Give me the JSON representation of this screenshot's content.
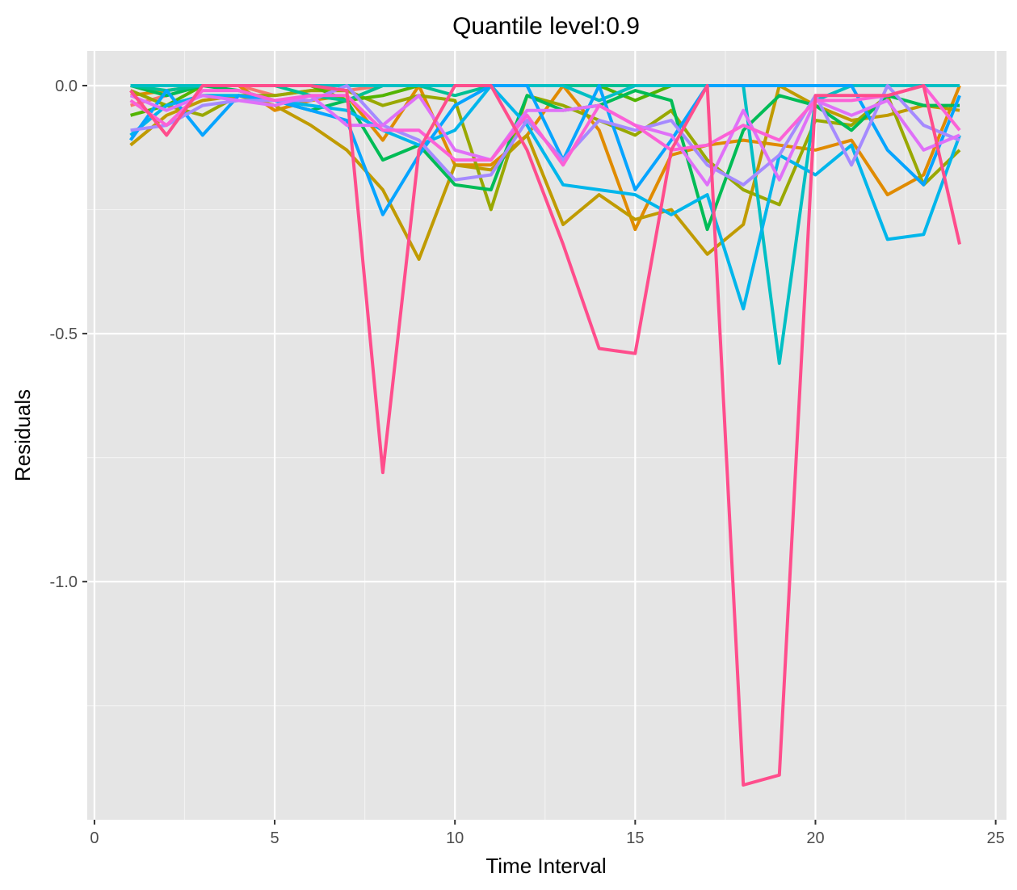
{
  "chart_data": {
    "type": "line",
    "title": "Quantile level:0.9",
    "xlabel": "Time Interval",
    "ylabel": "Residuals",
    "xlim": [
      -0.2,
      25.3
    ],
    "ylim": [
      -1.48,
      0.07
    ],
    "x_ticks": [
      0,
      5,
      10,
      15,
      20,
      25
    ],
    "x_tick_labels": [
      "0",
      "5",
      "10",
      "15",
      "20",
      "25"
    ],
    "y_ticks": [
      0.0,
      -0.5,
      -1.0
    ],
    "y_tick_labels": [
      "0.0",
      "-0.5",
      "-1.0"
    ],
    "background": "#e5e5e5",
    "grid": true,
    "legend": "none",
    "x": [
      1,
      2,
      3,
      4,
      5,
      6,
      7,
      8,
      9,
      10,
      11,
      12,
      13,
      14,
      15,
      16,
      17,
      18,
      19,
      20,
      21,
      22,
      23,
      24
    ],
    "series": [
      {
        "color": "#F8766D",
        "values": [
          -0.04,
          -0.02,
          0,
          0,
          -0.02,
          -0.01,
          -0.01,
          0,
          0,
          0,
          0,
          0,
          0,
          0,
          0,
          0,
          0,
          0,
          0,
          0,
          0,
          0,
          0,
          0
        ]
      },
      {
        "color": "#E08B00",
        "values": [
          -0.02,
          -0.01,
          0,
          0,
          -0.05,
          -0.03,
          -0.02,
          -0.11,
          0,
          -0.16,
          -0.16,
          -0.1,
          0,
          -0.09,
          -0.29,
          -0.14,
          -0.12,
          -0.11,
          -0.12,
          -0.13,
          -0.11,
          -0.22,
          -0.18,
          0
        ]
      },
      {
        "color": "#C09B00",
        "values": [
          -0.12,
          -0.06,
          -0.03,
          -0.02,
          -0.04,
          -0.08,
          -0.13,
          -0.21,
          -0.35,
          -0.16,
          -0.17,
          -0.1,
          -0.28,
          -0.22,
          -0.27,
          -0.25,
          -0.34,
          -0.28,
          0,
          -0.04,
          -0.07,
          -0.06,
          -0.04,
          -0.05
        ]
      },
      {
        "color": "#99A800",
        "values": [
          -0.01,
          -0.04,
          -0.06,
          -0.02,
          -0.02,
          -0.01,
          -0.01,
          -0.04,
          -0.02,
          -0.03,
          -0.25,
          -0.02,
          -0.04,
          -0.07,
          -0.1,
          -0.05,
          -0.15,
          -0.21,
          -0.24,
          -0.07,
          -0.08,
          -0.02,
          -0.2,
          -0.13
        ]
      },
      {
        "color": "#53B400",
        "values": [
          -0.06,
          -0.04,
          0,
          0,
          0,
          0,
          -0.03,
          -0.02,
          0,
          0,
          0,
          0,
          0,
          0,
          -0.03,
          0,
          0,
          0,
          0,
          0,
          0,
          0,
          0,
          0
        ]
      },
      {
        "color": "#00BC56",
        "values": [
          0,
          -0.02,
          0,
          -0.01,
          -0.03,
          -0.05,
          -0.03,
          -0.15,
          -0.12,
          -0.2,
          -0.21,
          -0.02,
          -0.05,
          -0.04,
          -0.01,
          -0.03,
          -0.29,
          -0.09,
          -0.02,
          -0.04,
          -0.09,
          -0.02,
          -0.04,
          -0.04
        ]
      },
      {
        "color": "#00C094",
        "values": [
          0,
          -0.01,
          0,
          0,
          0,
          -0.02,
          -0.03,
          0,
          0,
          -0.02,
          0,
          0,
          0,
          0,
          0,
          0,
          0,
          0,
          0,
          0,
          0,
          0,
          0,
          0
        ]
      },
      {
        "color": "#00BFC4",
        "values": [
          0,
          0,
          0,
          0,
          0,
          0,
          0,
          0,
          0,
          0,
          0,
          0,
          0,
          -0.03,
          0,
          0,
          0,
          0,
          -0.56,
          -0.03,
          0,
          0,
          0,
          0
        ]
      },
      {
        "color": "#00B6EB",
        "values": [
          -0.1,
          -0.04,
          -0.02,
          -0.02,
          -0.03,
          -0.04,
          -0.05,
          -0.09,
          -0.12,
          -0.09,
          0,
          -0.08,
          -0.2,
          -0.21,
          -0.22,
          -0.26,
          -0.22,
          -0.45,
          -0.14,
          -0.18,
          -0.12,
          -0.31,
          -0.3,
          -0.1
        ]
      },
      {
        "color": "#06A4FF",
        "values": [
          -0.11,
          -0.01,
          -0.1,
          -0.02,
          -0.03,
          -0.05,
          -0.07,
          -0.26,
          -0.14,
          -0.04,
          0,
          0,
          -0.15,
          0,
          -0.21,
          -0.11,
          0,
          0,
          0,
          0,
          0,
          -0.13,
          -0.2,
          -0.02
        ]
      },
      {
        "color": "#A58AFF",
        "values": [
          -0.09,
          -0.08,
          -0.04,
          -0.03,
          -0.03,
          -0.03,
          0,
          -0.08,
          -0.11,
          -0.19,
          -0.18,
          -0.07,
          -0.15,
          -0.07,
          -0.09,
          -0.07,
          -0.16,
          -0.2,
          -0.14,
          -0.02,
          -0.16,
          0,
          -0.08,
          -0.11
        ]
      },
      {
        "color": "#DF70F8",
        "values": [
          -0.02,
          -0.05,
          -0.02,
          -0.03,
          -0.04,
          -0.02,
          -0.08,
          -0.08,
          -0.02,
          -0.13,
          -0.15,
          -0.05,
          -0.05,
          -0.04,
          -0.08,
          -0.1,
          -0.2,
          -0.05,
          -0.19,
          -0.03,
          -0.06,
          -0.03,
          -0.13,
          -0.1
        ]
      },
      {
        "color": "#FB61D7",
        "values": [
          -0.03,
          -0.08,
          -0.01,
          -0.01,
          -0.03,
          -0.02,
          -0.02,
          -0.09,
          -0.09,
          -0.15,
          -0.15,
          -0.06,
          -0.16,
          -0.04,
          -0.08,
          -0.13,
          -0.12,
          -0.08,
          -0.11,
          -0.03,
          -0.03,
          -0.02,
          0,
          -0.09
        ]
      },
      {
        "color": "#FF4D8C",
        "values": [
          -0.01,
          -0.1,
          0,
          0,
          0,
          0,
          -0.01,
          -0.78,
          -0.13,
          0,
          0,
          -0.13,
          -0.32,
          -0.53,
          -0.54,
          -0.13,
          0,
          -1.41,
          -1.39,
          -0.02,
          -0.02,
          -0.02,
          0,
          -0.32
        ]
      }
    ]
  }
}
